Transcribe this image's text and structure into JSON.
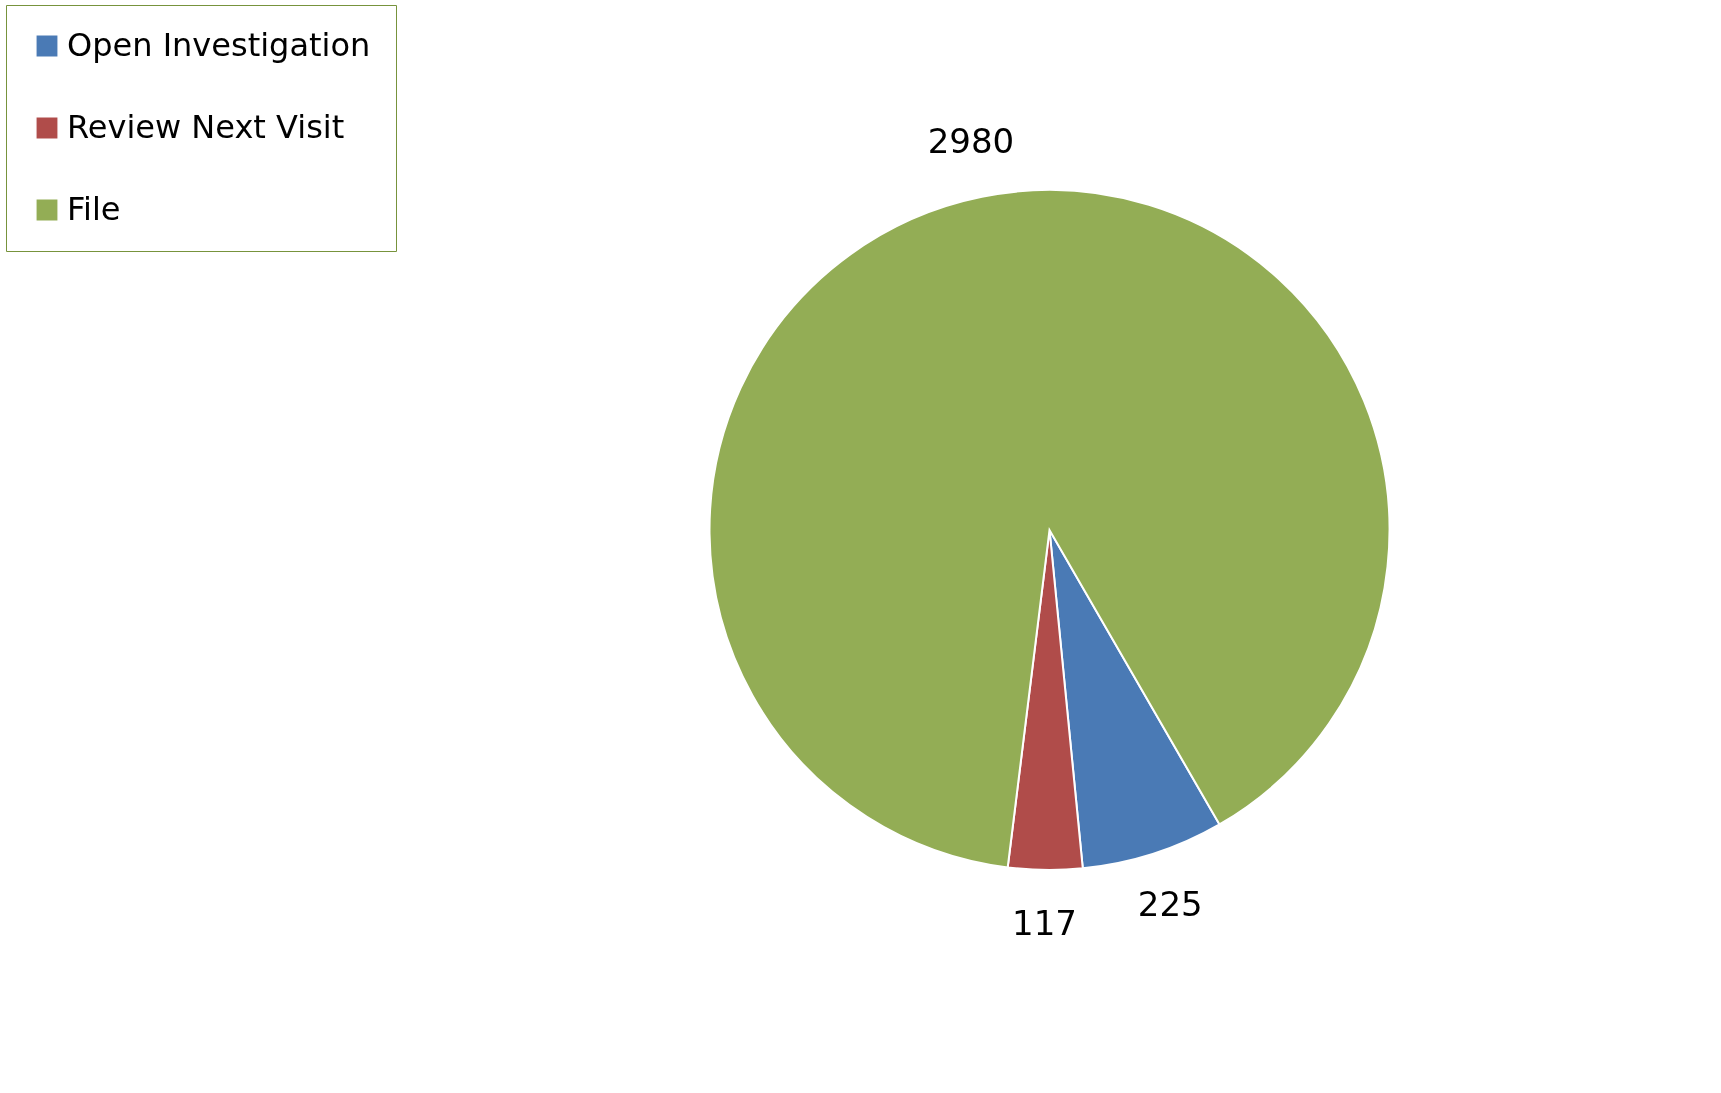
{
  "chart_data": {
    "type": "pie",
    "categories": [
      "Open Investigation",
      "Review Next Visit",
      "File"
    ],
    "values": [
      225,
      117,
      2980
    ],
    "colors": [
      "#4a7ab5",
      "#b04c4a",
      "#93ad55"
    ],
    "data_labels": true,
    "legend": "left"
  }
}
